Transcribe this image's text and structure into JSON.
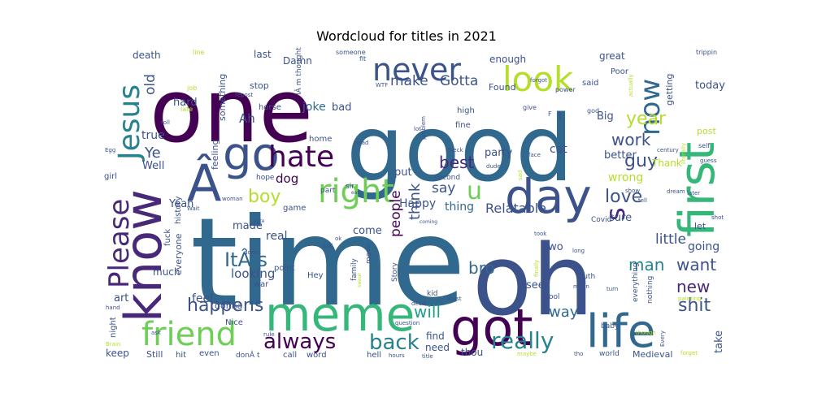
{
  "chart_data": {
    "type": "wordcloud",
    "title": "Wordcloud for titles in 2021",
    "background": "#ffffff",
    "colormap": "viridis",
    "words": [
      {
        "text": "time",
        "weight": 1.0,
        "color": "#31688e"
      },
      {
        "text": "one",
        "weight": 0.9,
        "color": "#440154"
      },
      {
        "text": "good",
        "weight": 0.88,
        "color": "#31688e"
      },
      {
        "text": "oh",
        "weight": 0.85,
        "color": "#3b528b"
      },
      {
        "text": "know",
        "weight": 0.62,
        "color": "#482878"
      },
      {
        "text": "first",
        "weight": 0.6,
        "color": "#35b779"
      },
      {
        "text": "got",
        "weight": 0.55,
        "color": "#440154"
      },
      {
        "text": "meme",
        "weight": 0.55,
        "color": "#35b779"
      },
      {
        "text": "day",
        "weight": 0.55,
        "color": "#3b528b"
      },
      {
        "text": "life",
        "weight": 0.52,
        "color": "#31688e"
      },
      {
        "text": "Â",
        "weight": 0.5,
        "color": "#3b528b"
      },
      {
        "text": "go",
        "weight": 0.5,
        "color": "#3b528b"
      },
      {
        "text": "look",
        "weight": 0.45,
        "color": "#b5de2b"
      },
      {
        "text": "never",
        "weight": 0.42,
        "color": "#3b528b"
      },
      {
        "text": "friend",
        "weight": 0.4,
        "color": "#6ece58"
      },
      {
        "text": "right",
        "weight": 0.4,
        "color": "#6ece58"
      },
      {
        "text": "hate",
        "weight": 0.38,
        "color": "#440154"
      },
      {
        "text": "Jesus",
        "weight": 0.38,
        "color": "#26828e"
      },
      {
        "text": "Please",
        "weight": 0.36,
        "color": "#482878"
      },
      {
        "text": "now",
        "weight": 0.36,
        "color": "#31688e"
      },
      {
        "text": "s",
        "weight": 0.34,
        "color": "#482878"
      },
      {
        "text": "u",
        "weight": 0.3,
        "color": "#6ece58"
      },
      {
        "text": "really",
        "weight": 0.3,
        "color": "#26828e"
      },
      {
        "text": "always",
        "weight": 0.28,
        "color": "#440154"
      },
      {
        "text": "back",
        "weight": 0.28,
        "color": "#26828e"
      },
      {
        "text": "ItÂ s",
        "weight": 0.26,
        "color": "#31688e"
      },
      {
        "text": "love",
        "weight": 0.26,
        "color": "#3b528b"
      },
      {
        "text": "happens",
        "weight": 0.26,
        "color": "#3b528b"
      },
      {
        "text": "shit",
        "weight": 0.25,
        "color": "#3b528b"
      },
      {
        "text": "will",
        "weight": 0.25,
        "color": "#1f9e89"
      },
      {
        "text": "year",
        "weight": 0.25,
        "color": "#b5de2b"
      },
      {
        "text": "boy",
        "weight": 0.24,
        "color": "#b5de2b"
      },
      {
        "text": "guy",
        "weight": 0.24,
        "color": "#3b528b"
      },
      {
        "text": "work",
        "weight": 0.24,
        "color": "#3b528b"
      },
      {
        "text": "best",
        "weight": 0.24,
        "color": "#482878"
      },
      {
        "text": "bro",
        "weight": 0.24,
        "color": "#31688e"
      },
      {
        "text": "man",
        "weight": 0.24,
        "color": "#26828e"
      },
      {
        "text": "want",
        "weight": 0.24,
        "color": "#3b528b"
      },
      {
        "text": "new",
        "weight": 0.23,
        "color": "#482878"
      },
      {
        "text": "make",
        "weight": 0.22,
        "color": "#3b528b"
      },
      {
        "text": "Gotta",
        "weight": 0.22,
        "color": "#3b528b"
      },
      {
        "text": "think",
        "weight": 0.22,
        "color": "#3b528b"
      },
      {
        "text": "people",
        "weight": 0.22,
        "color": "#440154"
      },
      {
        "text": "little",
        "weight": 0.22,
        "color": "#3b528b"
      },
      {
        "text": "say",
        "weight": 0.2,
        "color": "#3b528b"
      },
      {
        "text": "way",
        "weight": 0.2,
        "color": "#31688e"
      },
      {
        "text": "Ye",
        "weight": 0.2,
        "color": "#3b528b"
      },
      {
        "text": "old",
        "weight": 0.2,
        "color": "#3b528b"
      },
      {
        "text": "Relatable",
        "weight": 0.18,
        "color": "#3b528b"
      },
      {
        "text": "looking",
        "weight": 0.17,
        "color": "#3b528b"
      },
      {
        "text": "dog",
        "weight": 0.17,
        "color": "#440154"
      },
      {
        "text": "cat",
        "weight": 0.16,
        "color": "#3b528b"
      },
      {
        "text": "joke",
        "weight": 0.16,
        "color": "#31688e"
      },
      {
        "text": "Ah",
        "weight": 0.16,
        "color": "#3b528b"
      },
      {
        "text": "true",
        "weight": 0.16,
        "color": "#3b528b"
      },
      {
        "text": "thing",
        "weight": 0.16,
        "color": "#31688e"
      },
      {
        "text": "Happy",
        "weight": 0.15,
        "color": "#3b528b"
      },
      {
        "text": "wrong",
        "weight": 0.15,
        "color": "#b5de2b"
      },
      {
        "text": "feel",
        "weight": 0.15,
        "color": "#3b528b"
      },
      {
        "text": "real",
        "weight": 0.15,
        "color": "#3b528b"
      },
      {
        "text": "going",
        "weight": 0.15,
        "color": "#3b528b"
      },
      {
        "text": "bad",
        "weight": 0.14,
        "color": "#3b528b"
      },
      {
        "text": "hard",
        "weight": 0.14,
        "color": "#3b528b"
      },
      {
        "text": "Yeah",
        "weight": 0.14,
        "color": "#3b528b"
      },
      {
        "text": "made",
        "weight": 0.14,
        "color": "#3b528b"
      },
      {
        "text": "art",
        "weight": 0.14,
        "color": "#3b528b"
      },
      {
        "text": "sure",
        "weight": 0.14,
        "color": "#3b528b"
      },
      {
        "text": "two",
        "weight": 0.14,
        "color": "#3b528b"
      },
      {
        "text": "see",
        "weight": 0.14,
        "color": "#3b528b"
      },
      {
        "text": "today",
        "weight": 0.14,
        "color": "#3b528b"
      },
      {
        "text": "take",
        "weight": 0.14,
        "color": "#3b528b"
      },
      {
        "text": "Big",
        "weight": 0.14,
        "color": "#3b528b"
      },
      {
        "text": "put",
        "weight": 0.14,
        "color": "#3b528b"
      },
      {
        "text": "come",
        "weight": 0.14,
        "color": "#3b528b"
      },
      {
        "text": "party",
        "weight": 0.14,
        "color": "#3b528b"
      },
      {
        "text": "better",
        "weight": 0.13,
        "color": "#3b528b"
      },
      {
        "text": "Well",
        "weight": 0.13,
        "color": "#3b528b"
      },
      {
        "text": "keep",
        "weight": 0.13,
        "color": "#3b528b"
      },
      {
        "text": "much",
        "weight": 0.13,
        "color": "#3b528b"
      },
      {
        "text": "find",
        "weight": 0.13,
        "color": "#3b528b"
      },
      {
        "text": "need",
        "weight": 0.13,
        "color": "#3b528b"
      },
      {
        "text": "thou",
        "weight": 0.13,
        "color": "#3b528b"
      },
      {
        "text": "great",
        "weight": 0.13,
        "color": "#3b528b"
      },
      {
        "text": "Thank",
        "weight": 0.12,
        "color": "#b5de2b"
      },
      {
        "text": "last",
        "weight": 0.12,
        "color": "#3b528b"
      },
      {
        "text": "Damn",
        "weight": 0.12,
        "color": "#3b528b"
      },
      {
        "text": "enough",
        "weight": 0.12,
        "color": "#3b528b"
      },
      {
        "text": "Found",
        "weight": 0.12,
        "color": "#3b528b"
      },
      {
        "text": "death",
        "weight": 0.12,
        "color": "#3b528b"
      },
      {
        "text": "stop",
        "weight": 0.12,
        "color": "#3b528b"
      },
      {
        "text": "getting",
        "weight": 0.12,
        "color": "#3b528b"
      },
      {
        "text": "post",
        "weight": 0.12,
        "color": "#b5de2b"
      },
      {
        "text": "let",
        "weight": 0.12,
        "color": "#3b528b"
      },
      {
        "text": "Medieval",
        "weight": 0.12,
        "color": "#3b528b"
      },
      {
        "text": "something",
        "weight": 0.11,
        "color": "#3b528b"
      },
      {
        "text": "feeling",
        "weight": 0.11,
        "color": "#3b528b"
      },
      {
        "text": "everyone",
        "weight": 0.11,
        "color": "#3b528b"
      },
      {
        "text": "gonna",
        "weight": 0.11,
        "color": "#3b528b"
      },
      {
        "text": "Still",
        "weight": 0.1,
        "color": "#3b528b"
      },
      {
        "text": "hit",
        "weight": 0.1,
        "color": "#3b528b"
      },
      {
        "text": "even",
        "weight": 0.1,
        "color": "#3b528b"
      },
      {
        "text": "Poor",
        "weight": 0.1,
        "color": "#3b528b"
      },
      {
        "text": "said",
        "weight": 0.1,
        "color": "#3b528b"
      },
      {
        "text": "high",
        "weight": 0.1,
        "color": "#3b528b"
      },
      {
        "text": "fine",
        "weight": 0.1,
        "color": "#3b528b"
      },
      {
        "text": "home",
        "weight": 0.1,
        "color": "#3b528b"
      },
      {
        "text": "horse",
        "weight": 0.1,
        "color": "#3b528b"
      },
      {
        "text": "game",
        "weight": 0.1,
        "color": "#3b528b"
      },
      {
        "text": "point",
        "weight": 0.1,
        "color": "#3b528b"
      },
      {
        "text": "Hey",
        "weight": 0.1,
        "color": "#3b528b"
      },
      {
        "text": "war",
        "weight": 0.1,
        "color": "#3b528b"
      },
      {
        "text": "call",
        "weight": 0.1,
        "color": "#3b528b"
      },
      {
        "text": "word",
        "weight": 0.1,
        "color": "#3b528b"
      },
      {
        "text": "hell",
        "weight": 0.1,
        "color": "#3b528b"
      },
      {
        "text": "night",
        "weight": 0.09,
        "color": "#3b528b"
      },
      {
        "text": "Nice",
        "weight": 0.09,
        "color": "#3b528b"
      },
      {
        "text": "fuck",
        "weight": 0.09,
        "color": "#3b528b"
      },
      {
        "text": "history",
        "weight": 0.09,
        "color": "#3b528b"
      },
      {
        "text": "girl",
        "weight": 0.09,
        "color": "#3b528b"
      },
      {
        "text": "hope",
        "weight": 0.09,
        "color": "#3b528b"
      },
      {
        "text": "sir",
        "weight": 0.09,
        "color": "#3b528b"
      },
      {
        "text": "second",
        "weight": 0.09,
        "color": "#3b528b"
      },
      {
        "text": "part",
        "weight": 0.09,
        "color": "#3b528b"
      },
      {
        "text": "kid",
        "weight": 0.09,
        "color": "#3b528b"
      },
      {
        "text": "move",
        "weight": 0.09,
        "color": "#3b528b"
      },
      {
        "text": "Story",
        "weight": 0.09,
        "color": "#3b528b"
      },
      {
        "text": "family",
        "weight": 0.09,
        "color": "#3b528b"
      },
      {
        "text": "cool",
        "weight": 0.09,
        "color": "#3b528b"
      },
      {
        "text": "baby",
        "weight": 0.09,
        "color": "#3b528b"
      },
      {
        "text": "world",
        "weight": 0.09,
        "color": "#3b528b"
      },
      {
        "text": "truth",
        "weight": 0.09,
        "color": "#3b528b"
      },
      {
        "text": "everything",
        "weight": 0.08,
        "color": "#3b528b"
      },
      {
        "text": "nothing",
        "weight": 0.08,
        "color": "#3b528b"
      },
      {
        "text": "Covid",
        "weight": 0.08,
        "color": "#3b528b"
      },
      {
        "text": "IÂ m thought",
        "weight": 0.08,
        "color": "#3b528b"
      },
      {
        "text": "donÂ t",
        "weight": 0.08,
        "color": "#3b528b"
      },
      {
        "text": "t",
        "weight": 0.08,
        "color": "#3b528b"
      },
      {
        "text": "F",
        "weight": 0.06,
        "color": "#3b528b"
      },
      {
        "text": "job",
        "weight": 0.06,
        "color": "#b5de2b"
      },
      {
        "text": "late",
        "weight": 0.06,
        "color": "#b5de2b"
      },
      {
        "text": "line",
        "weight": 0.06,
        "color": "#b5de2b"
      },
      {
        "text": "fit",
        "weight": 0.06,
        "color": "#3b528b"
      },
      {
        "text": "WTF",
        "weight": 0.06,
        "color": "#3b528b"
      },
      {
        "text": "someone",
        "weight": 0.06,
        "color": "#3b528b"
      },
      {
        "text": "trippin",
        "weight": 0.06,
        "color": "#3b528b"
      },
      {
        "text": "power",
        "weight": 0.06,
        "color": "#3b528b"
      },
      {
        "text": "give",
        "weight": 0.06,
        "color": "#3b528b"
      },
      {
        "text": "forgot",
        "weight": 0.06,
        "color": "#3b528b"
      },
      {
        "text": "god",
        "weight": 0.06,
        "color": "#3b528b"
      },
      {
        "text": "actually",
        "weight": 0.06,
        "color": "#b5de2b"
      },
      {
        "text": "self",
        "weight": 0.06,
        "color": "#3b528b"
      },
      {
        "text": "guess",
        "weight": 0.06,
        "color": "#3b528b"
      },
      {
        "text": "century",
        "weight": 0.06,
        "color": "#3b528b"
      },
      {
        "text": "literally",
        "weight": 0.06,
        "color": "#b5de2b"
      },
      {
        "text": "dream",
        "weight": 0.06,
        "color": "#3b528b"
      },
      {
        "text": "later",
        "weight": 0.06,
        "color": "#3b528b"
      },
      {
        "text": "show",
        "weight": 0.06,
        "color": "#3b528b"
      },
      {
        "text": "tell",
        "weight": 0.06,
        "color": "#3b528b"
      },
      {
        "text": "shot",
        "weight": 0.06,
        "color": "#3b528b"
      },
      {
        "text": "Egg",
        "weight": 0.06,
        "color": "#3b528b"
      },
      {
        "text": "roll",
        "weight": 0.06,
        "color": "#3b528b"
      },
      {
        "text": "repost",
        "weight": 0.06,
        "color": "#3b528b"
      },
      {
        "text": "head",
        "weight": 0.06,
        "color": "#3b528b"
      },
      {
        "text": "lot",
        "weight": 0.06,
        "color": "#3b528b"
      },
      {
        "text": "problem",
        "weight": 0.06,
        "color": "#3b528b"
      },
      {
        "text": "check",
        "weight": 0.06,
        "color": "#3b528b"
      },
      {
        "text": "face",
        "weight": 0.06,
        "color": "#3b528b"
      },
      {
        "text": "dude",
        "weight": 0.06,
        "color": "#3b528b"
      },
      {
        "text": "sad",
        "weight": 0.06,
        "color": "#b5de2b"
      },
      {
        "text": "eat",
        "weight": 0.06,
        "color": "#3b528b"
      },
      {
        "text": "woman",
        "weight": 0.06,
        "color": "#3b528b"
      },
      {
        "text": "date",
        "weight": 0.06,
        "color": "#3b528b"
      },
      {
        "text": "Wait",
        "weight": 0.06,
        "color": "#3b528b"
      },
      {
        "text": "done",
        "weight": 0.06,
        "color": "#3b528b"
      },
      {
        "text": "coming",
        "weight": 0.06,
        "color": "#3b528b"
      },
      {
        "text": "ok",
        "weight": 0.06,
        "color": "#3b528b"
      },
      {
        "text": "dad",
        "weight": 0.06,
        "color": "#3b528b"
      },
      {
        "text": "swear",
        "weight": 0.06,
        "color": "#b5de2b"
      },
      {
        "text": "took",
        "weight": 0.06,
        "color": "#3b528b"
      },
      {
        "text": "finally",
        "weight": 0.06,
        "color": "#b5de2b"
      },
      {
        "text": "long",
        "weight": 0.06,
        "color": "#3b528b"
      },
      {
        "text": "dead",
        "weight": 0.06,
        "color": "#3b528b"
      },
      {
        "text": "must",
        "weight": 0.06,
        "color": "#3b528b"
      },
      {
        "text": "mean",
        "weight": 0.06,
        "color": "#3b528b"
      },
      {
        "text": "turn",
        "weight": 0.06,
        "color": "#3b528b"
      },
      {
        "text": "painting",
        "weight": 0.06,
        "color": "#b5de2b"
      },
      {
        "text": "question",
        "weight": 0.06,
        "color": "#3b528b"
      },
      {
        "text": "hand",
        "weight": 0.06,
        "color": "#3b528b"
      },
      {
        "text": "ask",
        "weight": 0.06,
        "color": "#3b528b"
      },
      {
        "text": "Brain",
        "weight": 0.06,
        "color": "#b5de2b"
      },
      {
        "text": "rule",
        "weight": 0.06,
        "color": "#3b528b"
      },
      {
        "text": "hours",
        "weight": 0.06,
        "color": "#3b528b"
      },
      {
        "text": "title",
        "weight": 0.06,
        "color": "#3b528b"
      },
      {
        "text": "maybe",
        "weight": 0.06,
        "color": "#b5de2b"
      },
      {
        "text": "tho",
        "weight": 0.06,
        "color": "#3b528b"
      },
      {
        "text": "though",
        "weight": 0.06,
        "color": "#b5de2b"
      },
      {
        "text": "Every",
        "weight": 0.06,
        "color": "#3b528b"
      },
      {
        "text": "forget",
        "weight": 0.06,
        "color": "#b5de2b"
      }
    ]
  }
}
